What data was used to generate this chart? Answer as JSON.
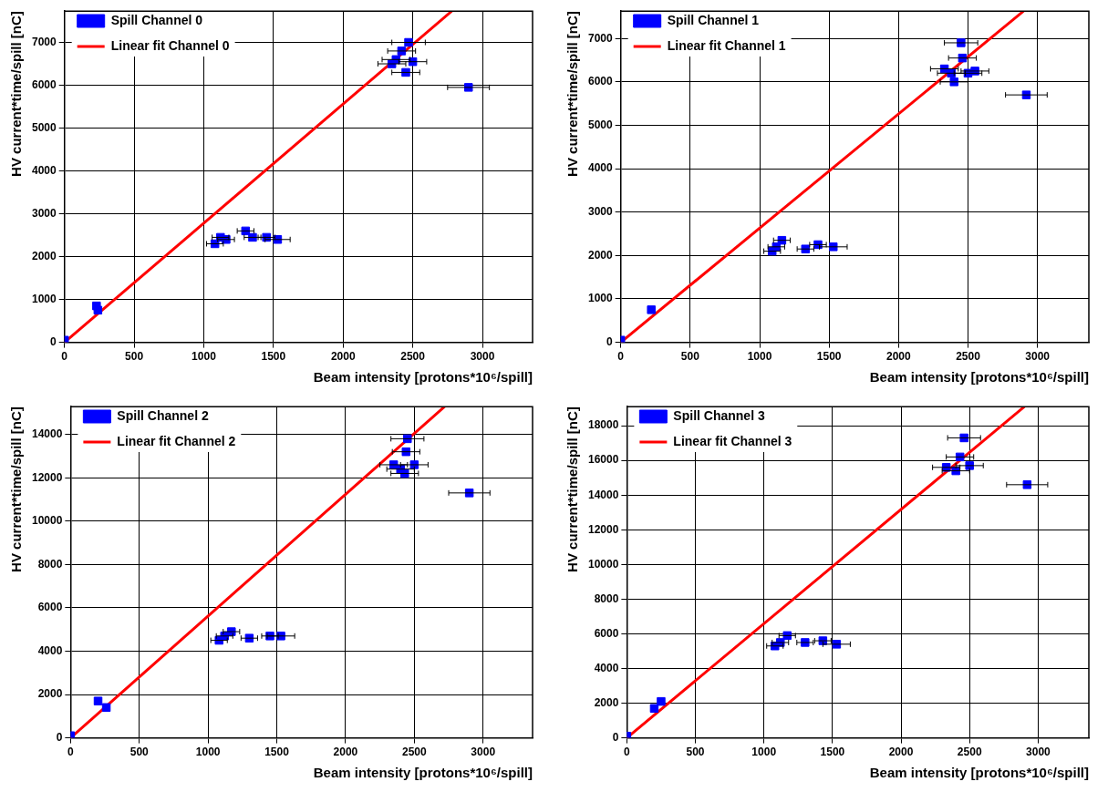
{
  "chart_data": [
    {
      "type": "scatter",
      "xlabel": "Beam intensity [protons*10⁶/spill]",
      "ylabel": "HV current*time/spill [nC]",
      "xlim": [
        0,
        3360
      ],
      "ylim": [
        0,
        7730
      ],
      "xticks": [
        0,
        500,
        1000,
        1500,
        2000,
        2500,
        3000
      ],
      "yticks": [
        0,
        1000,
        2000,
        3000,
        4000,
        5000,
        6000,
        7000
      ],
      "grid": true,
      "legend": "top left",
      "series": [
        {
          "name": "Spill Channel 0",
          "marker": "square",
          "color": "#0000ff",
          "x": [
            0,
            230,
            240,
            1080,
            1120,
            1160,
            1300,
            1350,
            1450,
            1530,
            2350,
            2380,
            2420,
            2450,
            2470,
            2500,
            2900
          ],
          "values": [
            50,
            850,
            750,
            2300,
            2450,
            2400,
            2600,
            2450,
            2450,
            2400,
            6500,
            6600,
            6800,
            6300,
            7000,
            6550,
            5950
          ],
          "xerrors": [
            null,
            null,
            null,
            60,
            60,
            60,
            60,
            60,
            60,
            90,
            100,
            100,
            100,
            100,
            120,
            100,
            150
          ]
        },
        {
          "name": "Linear fit Channel 0",
          "type": "line",
          "marker": "none",
          "color": "#ff0000",
          "x": [
            0,
            2780
          ],
          "values": [
            0,
            7730
          ]
        }
      ]
    },
    {
      "type": "scatter",
      "xlabel": "Beam intensity [protons*10⁶/spill]",
      "ylabel": "HV current*time/spill [nC]",
      "xlim": [
        0,
        3370
      ],
      "ylim": [
        0,
        7630
      ],
      "xticks": [
        0,
        500,
        1000,
        1500,
        2000,
        2500,
        3000
      ],
      "yticks": [
        0,
        1000,
        2000,
        3000,
        4000,
        5000,
        6000,
        7000
      ],
      "grid": true,
      "legend": "top left",
      "series": [
        {
          "name": "Spill Channel 1",
          "marker": "square",
          "color": "#0000ff",
          "x": [
            0,
            220,
            1090,
            1120,
            1160,
            1330,
            1420,
            1530,
            2330,
            2380,
            2400,
            2450,
            2460,
            2500,
            2550,
            2920
          ],
          "values": [
            50,
            750,
            2100,
            2200,
            2350,
            2150,
            2250,
            2200,
            6300,
            6200,
            6000,
            6900,
            6550,
            6200,
            6250,
            5700
          ],
          "xerrors": [
            null,
            null,
            60,
            60,
            60,
            60,
            60,
            100,
            100,
            100,
            100,
            120,
            100,
            100,
            100,
            150
          ]
        },
        {
          "name": "Linear fit Channel 1",
          "type": "line",
          "marker": "none",
          "color": "#ff0000",
          "x": [
            0,
            2900
          ],
          "values": [
            0,
            7630
          ]
        }
      ]
    },
    {
      "type": "scatter",
      "xlabel": "Beam intensity [protons*10⁶/spill]",
      "ylabel": "HV current*time/spill [nC]",
      "xlim": [
        0,
        3360
      ],
      "ylim": [
        0,
        15280
      ],
      "xticks": [
        0,
        500,
        1000,
        1500,
        2000,
        2500,
        3000
      ],
      "yticks": [
        0,
        2000,
        4000,
        6000,
        8000,
        10000,
        12000,
        14000
      ],
      "grid": true,
      "legend": "top left",
      "series": [
        {
          "name": "Spill Channel 2",
          "marker": "square",
          "color": "#0000ff",
          "x": [
            0,
            200,
            260,
            1080,
            1120,
            1170,
            1300,
            1450,
            1530,
            2350,
            2400,
            2430,
            2440,
            2450,
            2500,
            2900
          ],
          "values": [
            100,
            1700,
            1400,
            4500,
            4700,
            4900,
            4600,
            4700,
            4700,
            12600,
            12400,
            12200,
            13200,
            13800,
            12600,
            11300
          ],
          "xerrors": [
            null,
            null,
            null,
            60,
            60,
            60,
            60,
            60,
            100,
            100,
            100,
            100,
            100,
            120,
            100,
            150
          ]
        },
        {
          "name": "Linear fit Channel 2",
          "type": "line",
          "marker": "none",
          "color": "#ff0000",
          "x": [
            0,
            2720
          ],
          "values": [
            0,
            15280
          ]
        }
      ]
    },
    {
      "type": "scatter",
      "xlabel": "Beam intensity [protons*10⁶/spill]",
      "ylabel": "HV current*time/spill [nC]",
      "xlim": [
        0,
        3370
      ],
      "ylim": [
        0,
        19100
      ],
      "xticks": [
        0,
        500,
        1000,
        1500,
        2000,
        2500,
        3000
      ],
      "yticks": [
        0,
        2000,
        4000,
        6000,
        8000,
        10000,
        12000,
        14000,
        16000,
        18000
      ],
      "grid": true,
      "legend": "top left",
      "series": [
        {
          "name": "Spill Channel 3",
          "marker": "square",
          "color": "#0000ff",
          "x": [
            0,
            200,
            250,
            1080,
            1120,
            1170,
            1300,
            1430,
            1530,
            2330,
            2400,
            2430,
            2460,
            2500,
            2920
          ],
          "values": [
            100,
            1700,
            2100,
            5300,
            5500,
            5900,
            5500,
            5600,
            5400,
            15600,
            15400,
            16200,
            17300,
            15700,
            14600
          ],
          "xerrors": [
            null,
            null,
            null,
            60,
            60,
            60,
            60,
            60,
            100,
            100,
            100,
            100,
            120,
            100,
            150
          ]
        },
        {
          "name": "Linear fit Channel 3",
          "type": "line",
          "marker": "none",
          "color": "#ff0000",
          "x": [
            0,
            2900
          ],
          "values": [
            0,
            19100
          ]
        }
      ]
    }
  ]
}
